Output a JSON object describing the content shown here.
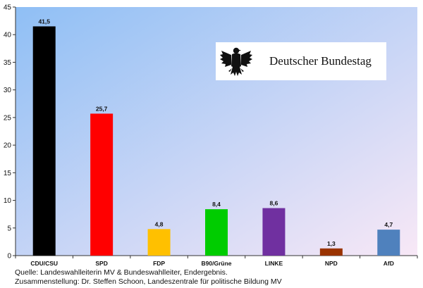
{
  "chart_data": {
    "type": "bar",
    "title": "",
    "xlabel": "",
    "ylabel": "",
    "categories": [
      "CDU/CSU",
      "SPD",
      "FDP",
      "B90/Grüne",
      "LINKE",
      "NPD",
      "AfD"
    ],
    "values": [
      41.5,
      25.7,
      4.8,
      8.4,
      8.6,
      1.3,
      4.7
    ],
    "value_labels": [
      "41,5",
      "25,7",
      "4,8",
      "8,4",
      "8,6",
      "1,3",
      "4,7"
    ],
    "colors": [
      "#000000",
      "#ff0000",
      "#ffc000",
      "#00cc00",
      "#7030a0",
      "#993300",
      "#4f81bd"
    ],
    "ylim": [
      0,
      45
    ],
    "yticks": [
      0,
      5,
      10,
      15,
      20,
      25,
      30,
      35,
      40,
      45
    ],
    "grid": false,
    "legend": "none",
    "background_gradient": [
      "#8fbff5",
      "#f8e8f6"
    ]
  },
  "logo": {
    "text": "Deutscher Bundestag",
    "icon": "federal-eagle-icon"
  },
  "captions": {
    "line1": "Quelle: Landeswahlleiterin MV & Bundeswahlleiter, Endergebnis.",
    "line2": "Zusammenstellung: Dr. Steffen Schoon, Landeszentrale für politische Bildung MV"
  }
}
